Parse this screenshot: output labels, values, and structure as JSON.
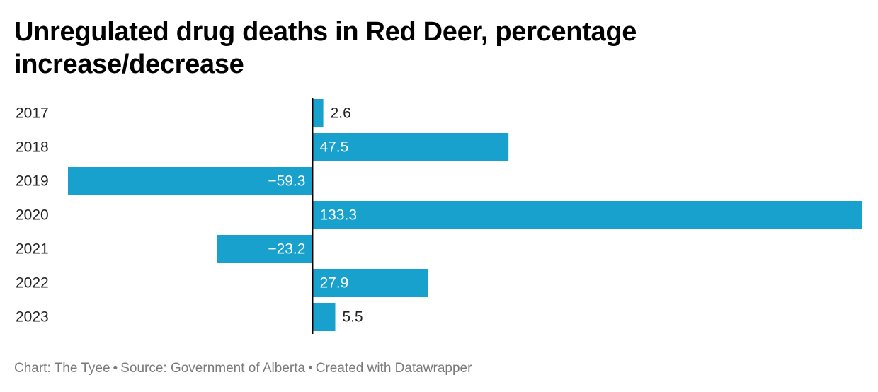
{
  "title": "Unregulated drug deaths in Red Deer, percentage increase/decrease",
  "footer": {
    "credit": "Chart: The Tyee",
    "source": "Source: Government of Alberta",
    "tool": "Created with Datawrapper",
    "separator": "•"
  },
  "colors": {
    "bar": "#18a1cd",
    "axis": "#000000",
    "text": "#222222",
    "label_inside": "#ffffff",
    "footer": "#7a7a7a"
  },
  "chart_data": {
    "type": "bar",
    "orientation": "horizontal",
    "title": "Unregulated drug deaths in Red Deer, percentage increase/decrease",
    "categories": [
      "2017",
      "2018",
      "2019",
      "2020",
      "2021",
      "2022",
      "2023"
    ],
    "values": [
      2.6,
      47.5,
      -59.3,
      133.3,
      -23.2,
      27.9,
      5.5
    ],
    "value_labels": [
      "2.6",
      "47.5",
      "−59.3",
      "133.3",
      "−23.2",
      "27.9",
      "5.5"
    ],
    "xlim": [
      -59.3,
      133.3
    ],
    "xlabel": "",
    "ylabel": "",
    "grid": false,
    "legend": "none"
  }
}
